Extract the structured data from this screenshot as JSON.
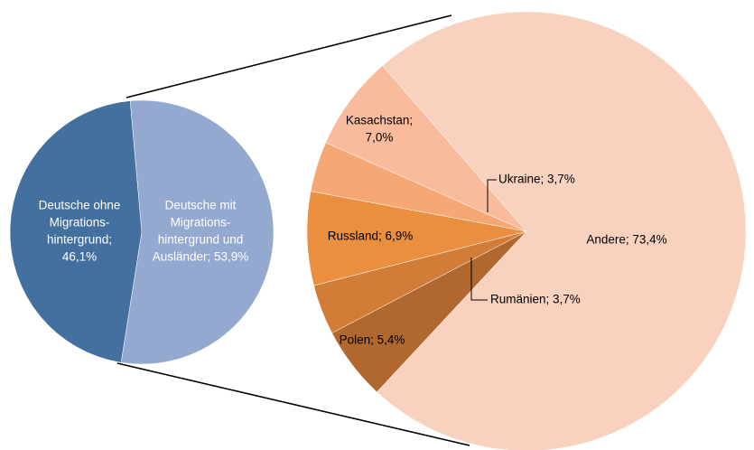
{
  "chart_data": [
    {
      "type": "pie",
      "values": [
        46.1,
        53.9
      ],
      "colors": [
        "#44709f",
        "#94a9d0"
      ],
      "labels": [
        [
          "Deutsche ohne",
          "Migrations-",
          "hintergrund;",
          "46,1%"
        ],
        [
          "Deutsche mit",
          "Migrations-",
          "hintergrund und",
          "Ausländer; 53,9%"
        ]
      ]
    },
    {
      "type": "pie",
      "values": [
        73.4,
        5.4,
        3.7,
        6.9,
        3.7,
        7.0
      ],
      "colors": [
        "#f9d2bf",
        "#b1682e",
        "#d17c37",
        "#e98f3f",
        "#f5a774",
        "#f8bc9d"
      ],
      "labels": [
        [
          "Andere; 73,4%"
        ],
        [
          "Polen; 5,4%"
        ],
        [
          "Rumänien; 3,7%"
        ],
        [
          "Russland; 6,9%"
        ],
        [
          "Ukraine; 3,7%"
        ],
        [
          "Kasachstan;",
          "7,0%"
        ]
      ]
    }
  ]
}
